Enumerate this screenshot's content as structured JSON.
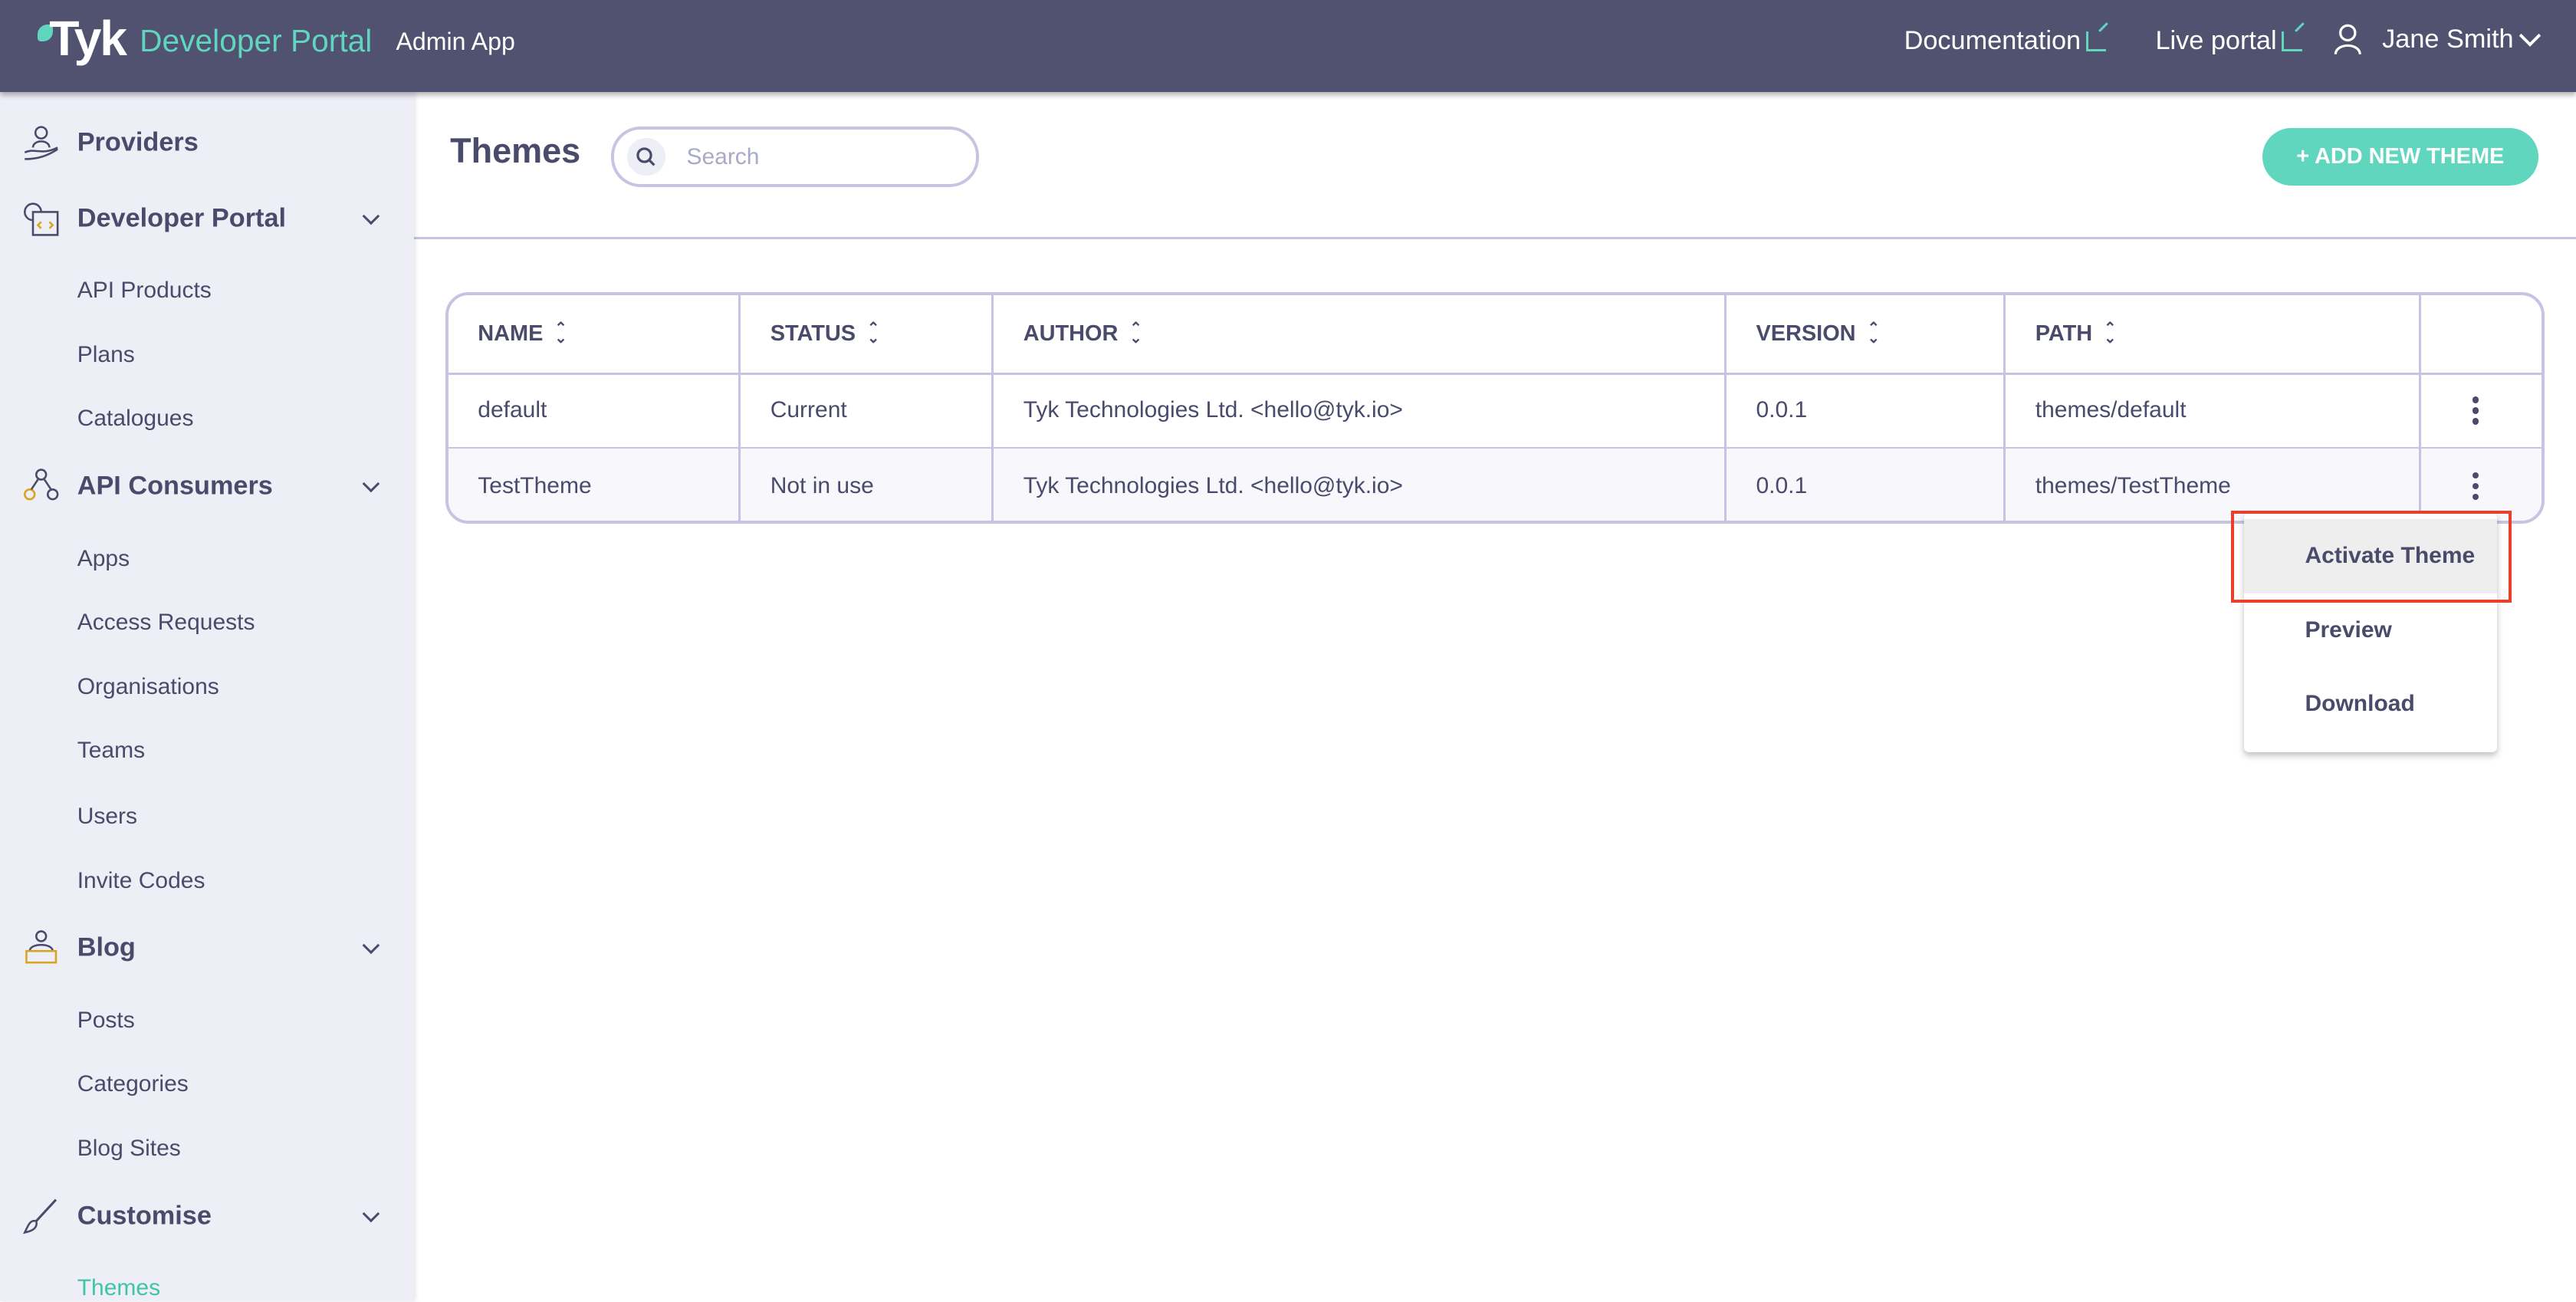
{
  "header": {
    "logo_text": "Tyk",
    "product": "Developer Portal",
    "app_label": "Admin App",
    "links": [
      {
        "label": "Documentation",
        "icon": "external-link-icon"
      },
      {
        "label": "Live portal",
        "icon": "external-link-icon"
      }
    ],
    "user": {
      "name": "Jane Smith",
      "icon": "user-icon"
    }
  },
  "sidebar": {
    "sections": [
      {
        "label": "Providers",
        "icon": "providers-icon",
        "items": []
      },
      {
        "label": "Developer Portal",
        "icon": "developer-portal-icon",
        "items": [
          "API Products",
          "Plans",
          "Catalogues"
        ]
      },
      {
        "label": "API Consumers",
        "icon": "api-consumers-icon",
        "items": [
          "Apps",
          "Access Requests",
          "Organisations",
          "Teams",
          "Users",
          "Invite Codes"
        ]
      },
      {
        "label": "Blog",
        "icon": "blog-icon",
        "items": [
          "Posts",
          "Categories",
          "Blog Sites"
        ]
      },
      {
        "label": "Customise",
        "icon": "brush-icon",
        "items": [
          "Themes"
        ]
      }
    ],
    "active_item": "Themes"
  },
  "main": {
    "title": "Themes",
    "search": {
      "placeholder": "Search",
      "value": ""
    },
    "add_button": "+ ADD NEW THEME",
    "table": {
      "columns": [
        "NAME",
        "STATUS",
        "AUTHOR",
        "VERSION",
        "PATH"
      ],
      "rows": [
        [
          "default",
          "Current",
          "Tyk Technologies Ltd. <hello@tyk.io>",
          "0.0.1",
          "themes/default"
        ],
        [
          "TestTheme",
          "Not in use",
          "Tyk Technologies Ltd. <hello@tyk.io>",
          "0.0.1",
          "themes/TestTheme"
        ]
      ]
    },
    "context_menu": {
      "items": [
        "Activate Theme",
        "Preview",
        "Download"
      ],
      "highlighted": "Activate Theme"
    }
  },
  "colors": {
    "header_bg": "#515270",
    "accent": "#5fd6bd",
    "sidebar_bg": "#eeeef7",
    "text": "#4a4b6a",
    "border": "#c5c5e3",
    "highlight_box": "#e8402b"
  }
}
